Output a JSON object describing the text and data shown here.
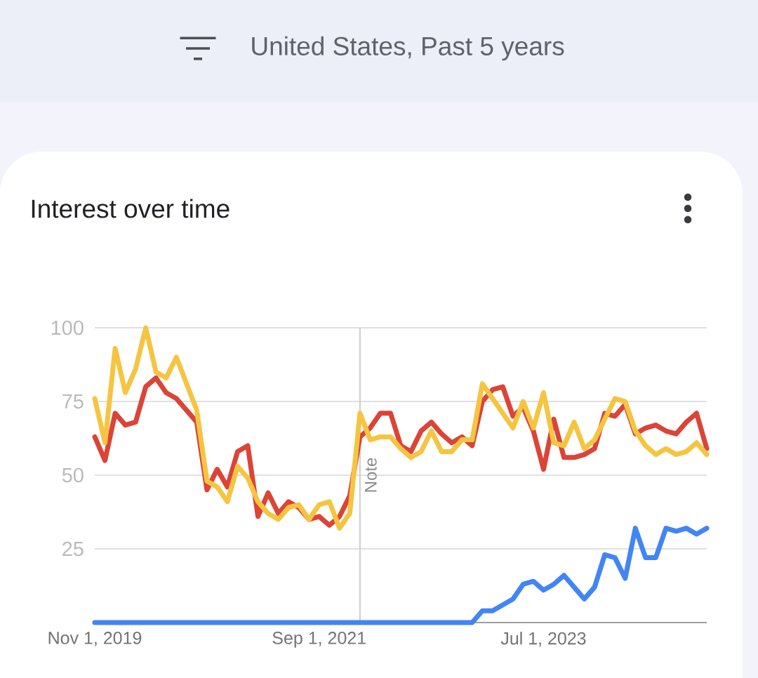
{
  "chart_data": {
    "type": "line",
    "title": "Interest over time",
    "subtitle": "United States, Past 5 years",
    "x": [
      "2019-11",
      "2019-12",
      "2020-01",
      "2020-02",
      "2020-03",
      "2020-04",
      "2020-05",
      "2020-06",
      "2020-07",
      "2020-08",
      "2020-09",
      "2020-10",
      "2020-11",
      "2020-12",
      "2021-01",
      "2021-02",
      "2021-03",
      "2021-04",
      "2021-05",
      "2021-06",
      "2021-07",
      "2021-08",
      "2021-09",
      "2021-10",
      "2021-11",
      "2021-12",
      "2022-01",
      "2022-02",
      "2022-03",
      "2022-04",
      "2022-05",
      "2022-06",
      "2022-07",
      "2022-08",
      "2022-09",
      "2022-10",
      "2022-11",
      "2022-12",
      "2023-01",
      "2023-02",
      "2023-03",
      "2023-04",
      "2023-05",
      "2023-06",
      "2023-07",
      "2023-08",
      "2023-09",
      "2023-10",
      "2023-11",
      "2023-12",
      "2024-01",
      "2024-02",
      "2024-03",
      "2024-04",
      "2024-05",
      "2024-06",
      "2024-07",
      "2024-08",
      "2024-09",
      "2024-10",
      "2024-11"
    ],
    "series": [
      {
        "color": "#db4437",
        "values": [
          63,
          55,
          71,
          67,
          68,
          80,
          83,
          78,
          76,
          72,
          68,
          45,
          52,
          46,
          58,
          60,
          36,
          44,
          37,
          41,
          39,
          35,
          36,
          33,
          36,
          43,
          63,
          66,
          71,
          71,
          60,
          58,
          65,
          68,
          64,
          61,
          63,
          60,
          75,
          79,
          80,
          70,
          73,
          65,
          52,
          69,
          56,
          56,
          57,
          59,
          71,
          70,
          74,
          64,
          66,
          67,
          65,
          64,
          68,
          71,
          59
        ]
      },
      {
        "color": "#f5c542",
        "values": [
          76,
          61,
          93,
          78,
          86,
          100,
          85,
          83,
          90,
          81,
          72,
          48,
          46,
          41,
          53,
          49,
          41,
          37,
          35,
          39,
          40,
          35,
          40,
          41,
          32,
          37,
          71,
          62,
          63,
          63,
          59,
          56,
          58,
          65,
          58,
          58,
          62,
          62,
          81,
          76,
          71,
          66,
          75,
          66,
          78,
          61,
          60,
          68,
          59,
          62,
          69,
          76,
          75,
          65,
          60,
          57,
          59,
          57,
          58,
          61,
          57
        ]
      },
      {
        "color": "#4285f4",
        "values": [
          0,
          0,
          0,
          0,
          0,
          0,
          0,
          0,
          0,
          0,
          0,
          0,
          0,
          0,
          0,
          0,
          0,
          0,
          0,
          0,
          0,
          0,
          0,
          0,
          0,
          0,
          0,
          0,
          0,
          0,
          0,
          0,
          0,
          0,
          0,
          0,
          0,
          0,
          4,
          4,
          6,
          8,
          13,
          14,
          11,
          13,
          16,
          12,
          8,
          12,
          23,
          22,
          15,
          32,
          22,
          22,
          32,
          31,
          32,
          30,
          32
        ]
      }
    ],
    "xlim": [
      "2019-11",
      "2024-11"
    ],
    "xticks": [
      {
        "value": "2019-11-01",
        "label": "Nov 1, 2019"
      },
      {
        "value": "2021-09-01",
        "label": "Sep 1, 2021"
      },
      {
        "value": "2023-07-01",
        "label": "Jul 1, 2023"
      }
    ],
    "ylim": [
      0,
      100
    ],
    "yticks": [
      25,
      50,
      75,
      100
    ],
    "grid": "y",
    "ref_lines": [
      {
        "axis": "x",
        "value": "2022-01",
        "label": "Note",
        "color": "#cccccc"
      }
    ]
  }
}
